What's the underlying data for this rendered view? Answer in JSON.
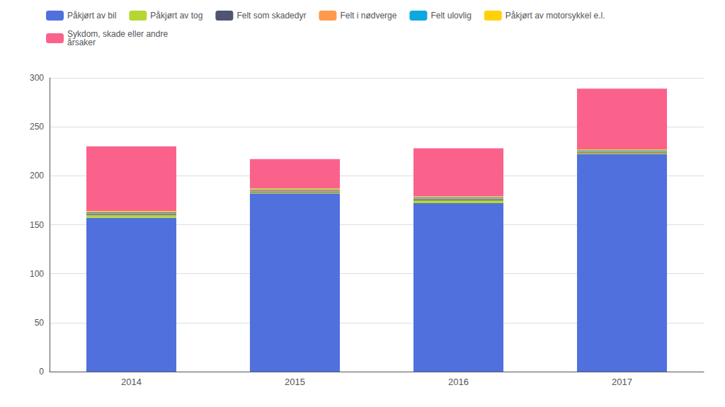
{
  "chart_data": {
    "type": "bar",
    "stacked": true,
    "categories": [
      "2014",
      "2015",
      "2016",
      "2017"
    ],
    "series": [
      {
        "name": "Påkjørt av bil",
        "values": [
          157,
          182,
          172,
          222
        ]
      },
      {
        "name": "Påkjørt av tog",
        "values": [
          3,
          1,
          3,
          1
        ]
      },
      {
        "name": "Felt som skadedyr",
        "values": [
          1,
          1,
          1,
          1
        ]
      },
      {
        "name": "Felt i nødverge",
        "values": [
          1,
          1,
          1,
          1
        ]
      },
      {
        "name": "Felt ulovlig",
        "values": [
          1,
          1,
          1,
          1
        ]
      },
      {
        "name": "Påkjørt av motorsykkel e.l.",
        "values": [
          1,
          1,
          1,
          1
        ]
      },
      {
        "name": "Sykdom, skade eller andre\nårsaker",
        "values": [
          66,
          30,
          49,
          62
        ]
      }
    ],
    "ylim": [
      0,
      300
    ],
    "yticks": [
      0,
      50,
      100,
      150,
      200,
      250,
      300
    ],
    "grid": true,
    "legend": "upper left"
  }
}
